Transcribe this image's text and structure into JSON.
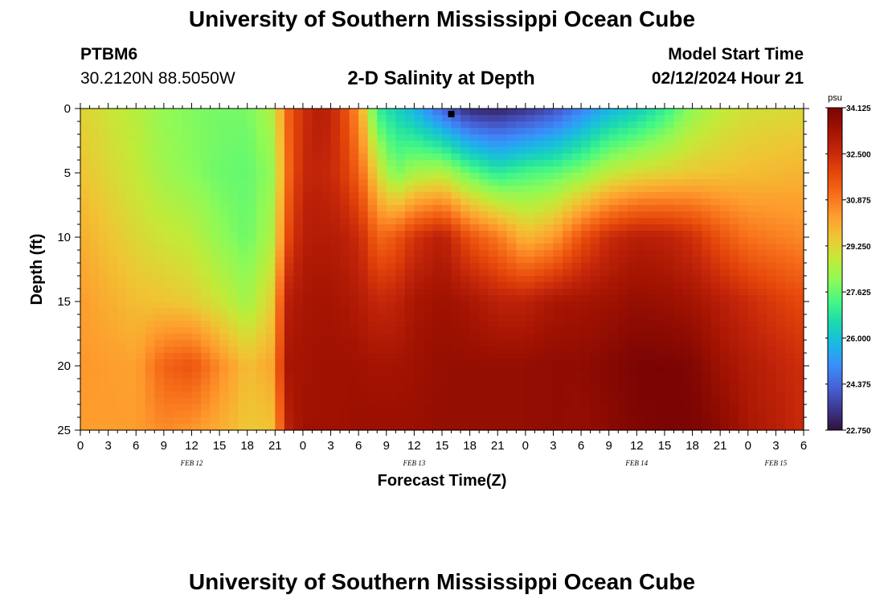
{
  "header": {
    "title": "University of Southern Mississippi Ocean Cube",
    "station_id": "PTBM6",
    "coordinates": "30.2120N  88.5050W",
    "model_start_label": "Model Start Time",
    "model_start_value": "02/12/2024 Hour 21"
  },
  "footer": {
    "title": "University of Southern Mississippi Ocean Cube"
  },
  "colors": {
    "scale": [
      "#30123b",
      "#3e3891",
      "#4662d7",
      "#3b8dfb",
      "#1ab8e4",
      "#1bd9b0",
      "#46f884",
      "#8ffa56",
      "#c5e937",
      "#f0c534",
      "#fe9b2d",
      "#f66c19",
      "#e4460a",
      "#c4260a",
      "#a11201",
      "#7a0403"
    ]
  },
  "chart_data": {
    "type": "heatmap",
    "title": "2-D Salinity at Depth",
    "xlabel": "Forecast Time(Z)",
    "ylabel": "Depth (ft)",
    "units": "psu",
    "x_hours": [
      -21,
      57
    ],
    "x_tick_labels": [
      "0",
      "3",
      "6",
      "9",
      "12",
      "15",
      "18",
      "21",
      "0",
      "3",
      "6",
      "9",
      "12",
      "15",
      "18",
      "21",
      "0",
      "3",
      "6",
      "9",
      "12",
      "15",
      "18",
      "21",
      "0",
      "3",
      "6"
    ],
    "date_labels": [
      {
        "label": "FEB 12",
        "hour": -9
      },
      {
        "label": "FEB 13",
        "hour": 15
      },
      {
        "label": "FEB 14",
        "hour": 39
      },
      {
        "label": "FEB 15",
        "hour": 54
      }
    ],
    "ylim": [
      0,
      25
    ],
    "y_ticks": [
      0,
      5,
      10,
      15,
      20,
      25
    ],
    "colorbar": {
      "min": 22.75,
      "max": 34.125,
      "tick_labels": [
        "34.125",
        "32.500",
        "30.875",
        "29.250",
        "27.625",
        "26.000",
        "24.375",
        "22.750"
      ]
    },
    "depths": [
      0,
      5,
      10,
      15,
      20,
      25
    ],
    "profiles": [
      {
        "hour": -21,
        "values": [
          29.3,
          29.6,
          30.0,
          30.3,
          30.4,
          30.3
        ]
      },
      {
        "hour": -15,
        "values": [
          28.6,
          28.8,
          29.2,
          29.7,
          30.2,
          30.3
        ]
      },
      {
        "hour": -12,
        "values": [
          28.1,
          28.3,
          28.9,
          29.6,
          31.3,
          30.6
        ]
      },
      {
        "hour": -9,
        "values": [
          27.9,
          28.0,
          28.7,
          29.4,
          31.6,
          30.4
        ]
      },
      {
        "hour": -6,
        "values": [
          27.8,
          27.7,
          28.1,
          28.9,
          30.6,
          30.0
        ]
      },
      {
        "hour": -3,
        "values": [
          27.8,
          27.6,
          27.7,
          28.3,
          29.7,
          29.5
        ]
      },
      {
        "hour": 0,
        "values": [
          28.6,
          28.2,
          28.6,
          29.5,
          30.2,
          29.6
        ]
      },
      {
        "hour": 1,
        "values": [
          31.0,
          30.8,
          31.5,
          32.8,
          33.2,
          32.7
        ]
      },
      {
        "hour": 3,
        "values": [
          32.4,
          32.6,
          32.9,
          33.2,
          33.3,
          33.4
        ]
      },
      {
        "hour": 5,
        "values": [
          33.0,
          32.7,
          33.0,
          33.3,
          33.4,
          33.4
        ]
      },
      {
        "hour": 7,
        "values": [
          32.2,
          32.3,
          32.9,
          33.2,
          33.4,
          33.4
        ]
      },
      {
        "hour": 9,
        "values": [
          30.4,
          31.3,
          32.5,
          33.0,
          33.4,
          33.5
        ]
      },
      {
        "hour": 10,
        "values": [
          28.8,
          30.4,
          32.0,
          32.8,
          33.3,
          33.5
        ]
      },
      {
        "hour": 11,
        "values": [
          27.0,
          29.2,
          31.2,
          32.6,
          33.3,
          33.5
        ]
      },
      {
        "hour": 13,
        "values": [
          26.4,
          27.8,
          31.5,
          32.7,
          33.3,
          33.5
        ]
      },
      {
        "hour": 15,
        "values": [
          25.7,
          28.4,
          32.3,
          33.2,
          33.4,
          33.5
        ]
      },
      {
        "hour": 18,
        "values": [
          24.3,
          28.6,
          32.9,
          33.4,
          33.6,
          33.6
        ]
      },
      {
        "hour": 21,
        "values": [
          23.2,
          27.6,
          31.6,
          33.2,
          33.6,
          33.6
        ]
      },
      {
        "hour": 24,
        "values": [
          23.1,
          26.9,
          30.9,
          32.8,
          33.6,
          33.6
        ]
      },
      {
        "hour": 27,
        "values": [
          23.4,
          27.3,
          29.8,
          32.8,
          33.6,
          33.6
        ]
      },
      {
        "hour": 30,
        "values": [
          23.9,
          27.5,
          30.3,
          33.2,
          33.7,
          33.7
        ]
      },
      {
        "hour": 33,
        "values": [
          24.8,
          28.0,
          31.6,
          33.3,
          33.7,
          33.6
        ]
      },
      {
        "hour": 36,
        "values": [
          25.7,
          28.7,
          32.5,
          33.4,
          33.9,
          33.8
        ]
      },
      {
        "hour": 39,
        "values": [
          26.2,
          29.1,
          32.9,
          33.6,
          34.1,
          34.0
        ]
      },
      {
        "hour": 42,
        "values": [
          27.0,
          29.3,
          32.8,
          33.5,
          34.1,
          34.1
        ]
      },
      {
        "hour": 45,
        "values": [
          28.1,
          29.5,
          32.4,
          33.3,
          34.0,
          34.1
        ]
      },
      {
        "hour": 48,
        "values": [
          28.7,
          29.6,
          31.6,
          32.9,
          33.4,
          33.8
        ]
      },
      {
        "hour": 51,
        "values": [
          29.0,
          29.7,
          31.0,
          32.5,
          33.0,
          33.2
        ]
      },
      {
        "hour": 54,
        "values": [
          29.1,
          29.8,
          30.8,
          32.1,
          32.7,
          32.9
        ]
      },
      {
        "hour": 57,
        "values": [
          29.2,
          29.9,
          30.6,
          31.8,
          32.4,
          32.5
        ]
      }
    ],
    "marker": {
      "hour": 19,
      "depth": 0.3
    }
  }
}
